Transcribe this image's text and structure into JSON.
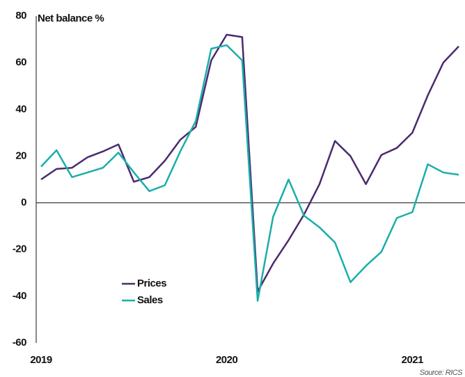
{
  "chart_data": {
    "type": "line",
    "title": "Net balance %",
    "source": "Source: RICS",
    "categories": [
      "2019",
      null,
      null,
      null,
      null,
      null,
      null,
      null,
      null,
      null,
      null,
      null,
      "2020",
      null,
      null,
      null,
      null,
      null,
      null,
      null,
      null,
      null,
      null,
      null,
      "2021",
      null,
      null,
      null
    ],
    "series": [
      {
        "name": "Prices",
        "color": "#4a2a6e",
        "values": [
          10,
          14.5,
          15,
          19.5,
          22,
          25,
          9,
          11,
          18,
          27,
          32.5,
          61,
          72,
          71,
          -38,
          -26,
          -16,
          -5,
          8,
          26.5,
          20,
          8,
          20.5,
          23.5,
          30,
          46,
          60,
          67
        ]
      },
      {
        "name": "Sales",
        "color": "#1aaea9",
        "values": [
          15.5,
          22.5,
          11,
          13,
          15,
          21.5,
          13,
          5,
          7.5,
          22,
          35,
          66,
          67.5,
          61,
          -42,
          -6,
          10,
          -5.5,
          -10.5,
          -17,
          -34,
          -27,
          -21,
          -6.5,
          -4,
          16.5,
          13,
          12
        ]
      }
    ],
    "ylim": [
      -60,
      80
    ],
    "yticks": [
      -60,
      -40,
      -20,
      0,
      20,
      40,
      60,
      80
    ],
    "zero_line": true,
    "legend": "lower-left"
  }
}
